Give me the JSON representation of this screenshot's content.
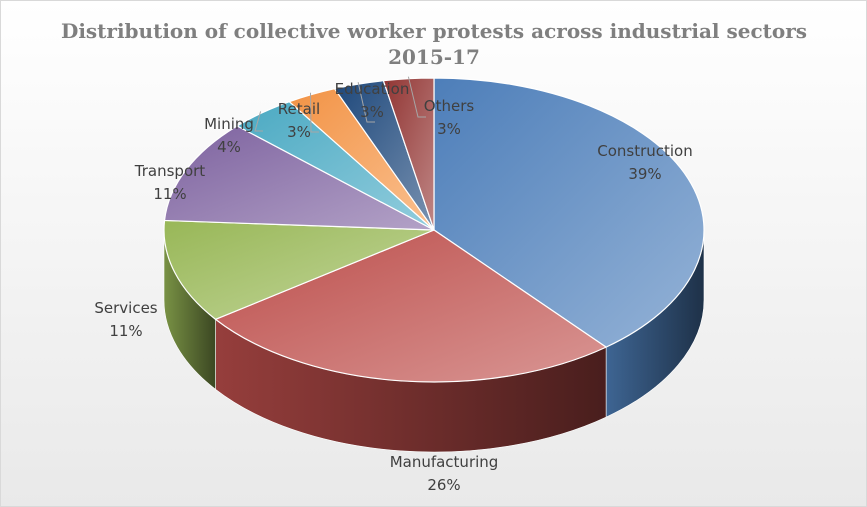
{
  "chart_data": {
    "type": "pie",
    "title": "Distribution of collective worker protests across industrial sectors",
    "subtitle": "2015-17",
    "slices": [
      {
        "label": "Construction",
        "value": 39,
        "display": "39%",
        "color": "#4f81bd"
      },
      {
        "label": "Manufacturing",
        "value": 26,
        "display": "26%",
        "color": "#c0504d"
      },
      {
        "label": "Services",
        "value": 11,
        "display": "11%",
        "color": "#9bbb59"
      },
      {
        "label": "Transport",
        "value": 11,
        "display": "11%",
        "color": "#8064a2"
      },
      {
        "label": "Mining",
        "value": 4,
        "display": "4%",
        "color": "#4bacc6"
      },
      {
        "label": "Retail",
        "value": 3,
        "display": "3%",
        "color": "#f79646"
      },
      {
        "label": "Education",
        "value": 3,
        "display": "3%",
        "color": "#1f497d"
      },
      {
        "label": "Others",
        "value": 3,
        "display": "3%",
        "color": "#943634"
      }
    ]
  }
}
